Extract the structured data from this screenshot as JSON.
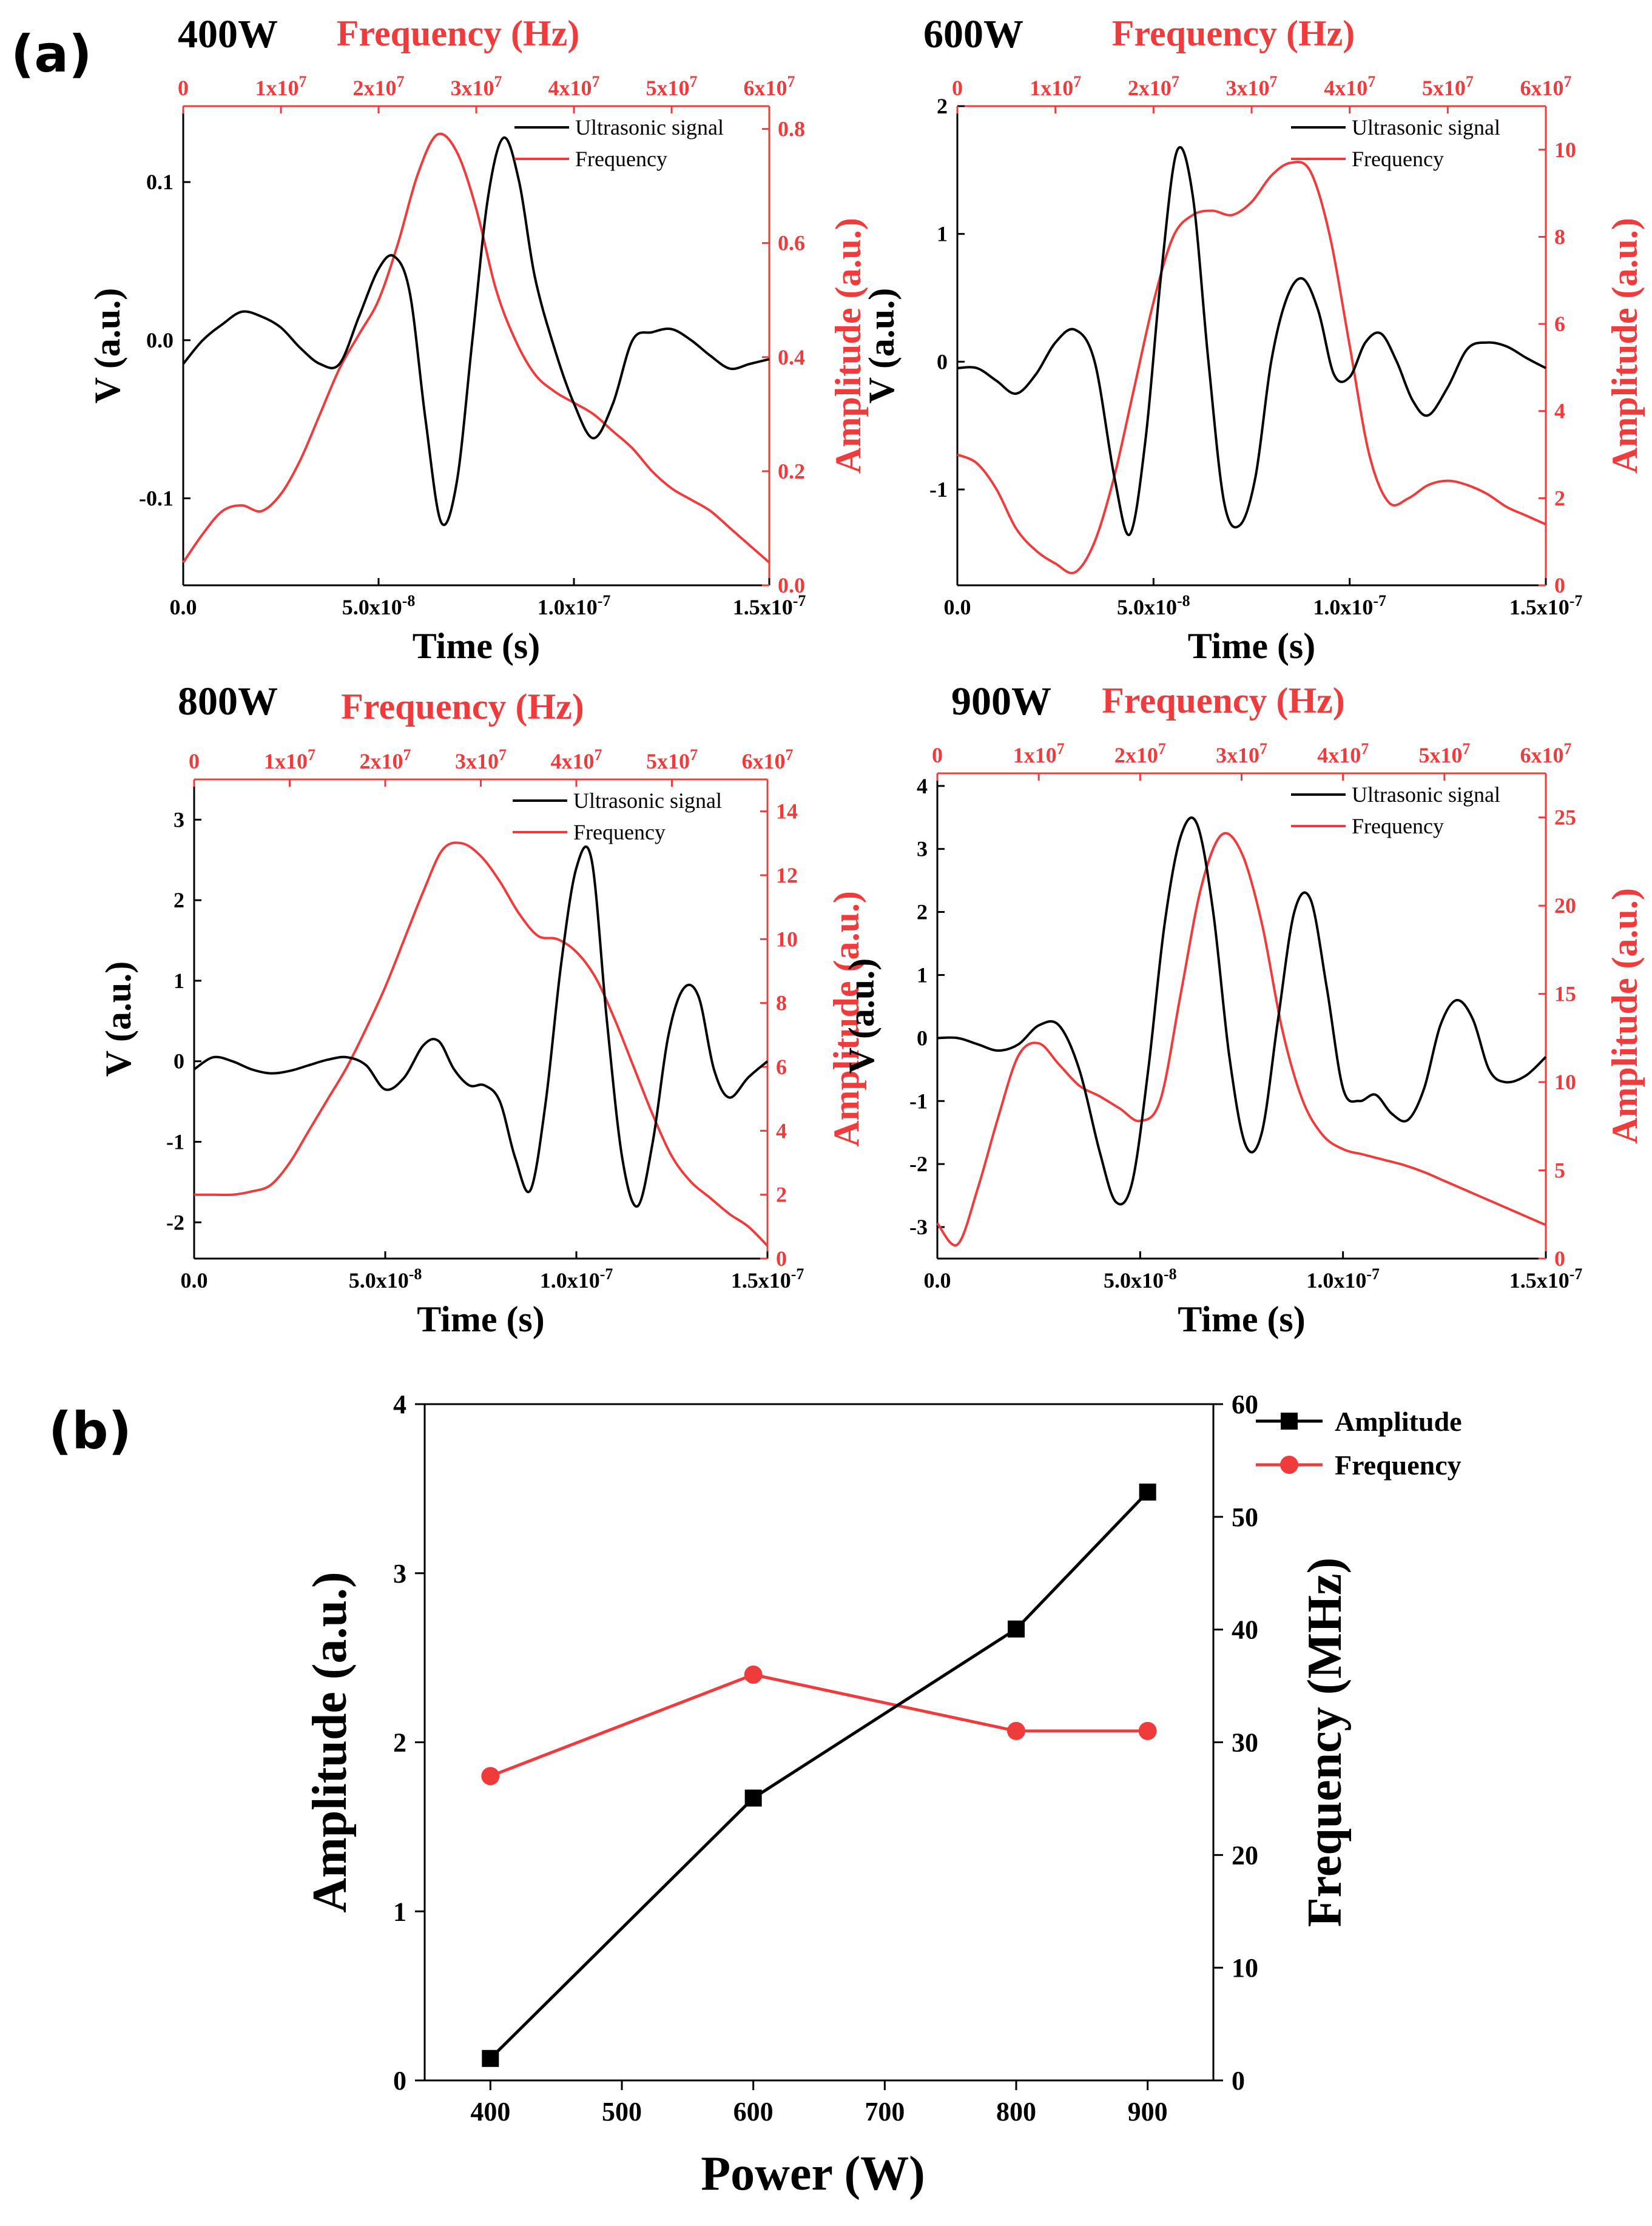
{
  "panel_labels": {
    "a": "(a)",
    "b": "(b)"
  },
  "colors": {
    "signal": "#000000",
    "frequency": "#ef3b3b"
  },
  "chart_data": [
    {
      "type": "line",
      "panel": "a",
      "title": "400W",
      "xlabel": "Time (s)",
      "ylabel": "V (a.u.)",
      "top_xlabel": "Frequency (Hz)",
      "right_ylabel": "Amplitude (a.u.)",
      "xlim": [
        0,
        1.5e-07
      ],
      "ylim": [
        -0.155,
        0.148
      ],
      "top_xlim": [
        0,
        60000000.0
      ],
      "right_ylim": [
        0,
        0.84
      ],
      "x_ticks": [
        "0.0",
        "5.0x10-8",
        "1.0x10-7",
        "1.5x10-7"
      ],
      "y_ticks": [
        "0.1",
        "0.0",
        "-0.1"
      ],
      "top_ticks": [
        "0",
        "1x107",
        "2x107",
        "3x107",
        "4x107",
        "5x107",
        "6x107"
      ],
      "right_ticks": [
        "0.8",
        "0.6",
        "0.4",
        "0.2",
        "0.0"
      ],
      "legend": [
        "Ultrasonic signal",
        "Frequency"
      ],
      "series": [
        {
          "name": "Ultrasonic signal",
          "axis": "bottom-left",
          "x": [
            0,
            5e-09,
            1e-08,
            1.5e-08,
            2e-08,
            2.5e-08,
            3e-08,
            3.5e-08,
            4e-08,
            4.5e-08,
            5e-08,
            5.4e-08,
            5.8e-08,
            6.2e-08,
            6.6e-08,
            7e-08,
            7.4e-08,
            7.8e-08,
            8.2e-08,
            8.6e-08,
            9e-08,
            9.5e-08,
            1e-07,
            1.05e-07,
            1.1e-07,
            1.15e-07,
            1.2e-07,
            1.25e-07,
            1.3e-07,
            1.35e-07,
            1.4e-07,
            1.45e-07,
            1.5e-07
          ],
          "y": [
            -0.015,
            0.0,
            0.01,
            0.018,
            0.015,
            0.008,
            -0.005,
            -0.015,
            -0.015,
            0.015,
            0.045,
            0.053,
            0.03,
            -0.05,
            -0.115,
            -0.09,
            0.0,
            0.09,
            0.128,
            0.1,
            0.04,
            -0.005,
            -0.04,
            -0.062,
            -0.04,
            0.0,
            0.005,
            0.007,
            0.0,
            -0.01,
            -0.018,
            -0.015,
            -0.012
          ]
        },
        {
          "name": "Frequency",
          "axis": "top-right",
          "x": [
            0,
            2000000.0,
            4000000.0,
            6000000.0,
            8000000.0,
            10000000.0,
            12000000.0,
            14000000.0,
            16000000.0,
            18000000.0,
            20000000.0,
            22000000.0,
            24000000.0,
            26000000.0,
            28000000.0,
            30000000.0,
            32000000.0,
            34000000.0,
            36000000.0,
            38000000.0,
            40000000.0,
            42000000.0,
            44000000.0,
            46000000.0,
            48000000.0,
            50000000.0,
            52000000.0,
            54000000.0,
            56000000.0,
            58000000.0,
            60000000.0
          ],
          "y": [
            0.04,
            0.09,
            0.13,
            0.14,
            0.13,
            0.16,
            0.22,
            0.3,
            0.38,
            0.44,
            0.5,
            0.6,
            0.72,
            0.79,
            0.76,
            0.66,
            0.52,
            0.43,
            0.37,
            0.34,
            0.32,
            0.3,
            0.27,
            0.24,
            0.2,
            0.17,
            0.15,
            0.13,
            0.1,
            0.07,
            0.04
          ]
        }
      ]
    },
    {
      "type": "line",
      "panel": "a",
      "title": "600W",
      "xlabel": "Time (s)",
      "ylabel": "V (a.u.)",
      "top_xlabel": "Frequency (Hz)",
      "right_ylabel": "Amplitude (a.u.)",
      "xlim": [
        0,
        1.5e-07
      ],
      "ylim": [
        -1.75,
        2.0
      ],
      "top_xlim": [
        0,
        60000000.0
      ],
      "right_ylim": [
        0,
        11.0
      ],
      "x_ticks": [
        "0.0",
        "5.0x10-8",
        "1.0x10-7",
        "1.5x10-7"
      ],
      "y_ticks": [
        "2",
        "1",
        "0",
        "-1"
      ],
      "top_ticks": [
        "0",
        "1x107",
        "2x107",
        "3x107",
        "4x107",
        "5x107",
        "6x107"
      ],
      "right_ticks": [
        "10",
        "8",
        "6",
        "4",
        "2",
        "0"
      ],
      "legend": [
        "Ultrasonic signal",
        "Frequency"
      ],
      "series": [
        {
          "name": "Ultrasonic signal",
          "axis": "bottom-left",
          "x": [
            0,
            5e-09,
            1e-08,
            1.5e-08,
            2e-08,
            2.5e-08,
            3e-08,
            3.5e-08,
            4e-08,
            4.4e-08,
            4.8e-08,
            5.2e-08,
            5.6e-08,
            6e-08,
            6.4e-08,
            6.8e-08,
            7.2e-08,
            7.6e-08,
            8e-08,
            8.4e-08,
            8.8e-08,
            9.2e-08,
            9.6e-08,
            1e-07,
            1.04e-07,
            1.08e-07,
            1.12e-07,
            1.16e-07,
            1.2e-07,
            1.25e-07,
            1.3e-07,
            1.35e-07,
            1.4e-07,
            1.45e-07,
            1.5e-07
          ],
          "y": [
            -0.05,
            -0.05,
            -0.15,
            -0.25,
            -0.1,
            0.15,
            0.25,
            0.0,
            -0.9,
            -1.35,
            -0.6,
            0.7,
            1.65,
            1.3,
            0.0,
            -1.1,
            -1.28,
            -0.9,
            0.0,
            0.5,
            0.65,
            0.4,
            -0.1,
            -0.12,
            0.15,
            0.22,
            0.0,
            -0.3,
            -0.42,
            -0.2,
            0.1,
            0.15,
            0.12,
            0.03,
            -0.05
          ]
        },
        {
          "name": "Frequency",
          "axis": "top-right",
          "x": [
            0,
            2000000.0,
            4000000.0,
            6000000.0,
            8000000.0,
            10000000.0,
            12000000.0,
            14000000.0,
            16000000.0,
            18000000.0,
            20000000.0,
            22000000.0,
            24000000.0,
            26000000.0,
            28000000.0,
            30000000.0,
            32000000.0,
            34000000.0,
            36000000.0,
            38000000.0,
            40000000.0,
            42000000.0,
            44000000.0,
            46000000.0,
            48000000.0,
            50000000.0,
            52000000.0,
            54000000.0,
            56000000.0,
            58000000.0,
            60000000.0
          ],
          "y": [
            3.0,
            2.8,
            2.2,
            1.3,
            0.8,
            0.5,
            0.3,
            1.0,
            2.5,
            4.5,
            6.5,
            8.0,
            8.5,
            8.6,
            8.5,
            8.8,
            9.4,
            9.7,
            9.5,
            8.0,
            5.5,
            3.0,
            1.9,
            2.0,
            2.3,
            2.4,
            2.3,
            2.1,
            1.8,
            1.6,
            1.4
          ]
        }
      ]
    },
    {
      "type": "line",
      "panel": "a",
      "title": "800W",
      "xlabel": "Time (s)",
      "ylabel": "V (a.u.)",
      "top_xlabel": "Frequency (Hz)",
      "right_ylabel": "Amplitude (a.u.)",
      "xlim": [
        0,
        1.5e-07
      ],
      "ylim": [
        -2.45,
        3.5
      ],
      "top_xlim": [
        0,
        60000000.0
      ],
      "right_ylim": [
        0,
        15.0
      ],
      "x_ticks": [
        "0.0",
        "5.0x10-8",
        "1.0x10-7",
        "1.5x10-7"
      ],
      "y_ticks": [
        "3",
        "2",
        "1",
        "0",
        "-1",
        "-2"
      ],
      "top_ticks": [
        "0",
        "1x107",
        "2x107",
        "3x107",
        "4x107",
        "5x107",
        "6x107"
      ],
      "right_ticks": [
        "14",
        "12",
        "10",
        "8",
        "6",
        "4",
        "2",
        "0"
      ],
      "legend": [
        "Ultrasonic signal",
        "Frequency"
      ],
      "series": [
        {
          "name": "Ultrasonic signal",
          "axis": "bottom-left",
          "x": [
            0,
            5e-09,
            1e-08,
            1.5e-08,
            2e-08,
            2.5e-08,
            3e-08,
            3.5e-08,
            4e-08,
            4.5e-08,
            5e-08,
            5.5e-08,
            6e-08,
            6.4e-08,
            6.8e-08,
            7.2e-08,
            7.6e-08,
            8e-08,
            8.4e-08,
            8.8e-08,
            9.2e-08,
            9.6e-08,
            1e-07,
            1.04e-07,
            1.08e-07,
            1.12e-07,
            1.16e-07,
            1.2e-07,
            1.24e-07,
            1.28e-07,
            1.32e-07,
            1.36e-07,
            1.4e-07,
            1.45e-07,
            1.5e-07
          ],
          "y": [
            -0.1,
            0.05,
            0.0,
            -0.1,
            -0.15,
            -0.12,
            -0.05,
            0.02,
            0.05,
            -0.05,
            -0.35,
            -0.2,
            0.2,
            0.25,
            -0.1,
            -0.3,
            -0.3,
            -0.5,
            -1.2,
            -1.6,
            -0.5,
            1.2,
            2.4,
            2.5,
            0.5,
            -1.2,
            -1.8,
            -1.0,
            0.3,
            0.9,
            0.8,
            -0.1,
            -0.45,
            -0.2,
            0.0
          ]
        },
        {
          "name": "Frequency",
          "axis": "top-right",
          "x": [
            0,
            2000000.0,
            4000000.0,
            6000000.0,
            8000000.0,
            10000000.0,
            12000000.0,
            14000000.0,
            16000000.0,
            18000000.0,
            20000000.0,
            22000000.0,
            24000000.0,
            26000000.0,
            28000000.0,
            30000000.0,
            32000000.0,
            34000000.0,
            36000000.0,
            38000000.0,
            40000000.0,
            42000000.0,
            44000000.0,
            46000000.0,
            48000000.0,
            50000000.0,
            52000000.0,
            54000000.0,
            56000000.0,
            58000000.0,
            60000000.0
          ],
          "y": [
            2.0,
            2.0,
            2.0,
            2.1,
            2.3,
            3.0,
            4.0,
            5.0,
            6.0,
            7.2,
            8.5,
            10.0,
            11.5,
            12.8,
            13.0,
            12.6,
            11.8,
            10.8,
            10.1,
            10.0,
            9.6,
            8.8,
            7.5,
            6.0,
            4.5,
            3.2,
            2.4,
            1.9,
            1.4,
            1.0,
            0.4
          ]
        }
      ]
    },
    {
      "type": "line",
      "panel": "a",
      "title": "900W",
      "xlabel": "Time (s)",
      "ylabel": "V (a.u.)",
      "top_xlabel": "Frequency (Hz)",
      "right_ylabel": "Amplitude (a.u.)",
      "xlim": [
        0,
        1.5e-07
      ],
      "ylim": [
        -3.5,
        4.2
      ],
      "top_xlim": [
        0,
        60000000.0
      ],
      "right_ylim": [
        0,
        27.5
      ],
      "x_ticks": [
        "0.0",
        "5.0x10-8",
        "1.0x10-7",
        "1.5x10-7"
      ],
      "y_ticks": [
        "4",
        "3",
        "2",
        "1",
        "0",
        "-1",
        "-2",
        "-3"
      ],
      "top_ticks": [
        "0",
        "1x107",
        "2x107",
        "3x107",
        "4x107",
        "5x107",
        "6x107"
      ],
      "right_ticks": [
        "25",
        "20",
        "15",
        "10",
        "5",
        "0"
      ],
      "legend": [
        "Ultrasonic signal",
        "Frequency"
      ],
      "series": [
        {
          "name": "Ultrasonic signal",
          "axis": "bottom-left",
          "x": [
            0,
            5e-09,
            1e-08,
            1.5e-08,
            2e-08,
            2.5e-08,
            3e-08,
            3.5e-08,
            4e-08,
            4.4e-08,
            4.8e-08,
            5.2e-08,
            5.6e-08,
            6e-08,
            6.4e-08,
            6.8e-08,
            7.2e-08,
            7.6e-08,
            8e-08,
            8.4e-08,
            8.8e-08,
            9.2e-08,
            9.6e-08,
            1e-07,
            1.04e-07,
            1.08e-07,
            1.12e-07,
            1.16e-07,
            1.2e-07,
            1.24e-07,
            1.28e-07,
            1.32e-07,
            1.36e-07,
            1.4e-07,
            1.45e-07,
            1.5e-07
          ],
          "y": [
            0.0,
            0.0,
            -0.1,
            -0.2,
            -0.1,
            0.2,
            0.2,
            -0.5,
            -1.8,
            -2.6,
            -2.3,
            -0.5,
            1.8,
            3.2,
            3.4,
            2.0,
            -0.3,
            -1.7,
            -1.5,
            0.3,
            2.0,
            2.2,
            0.8,
            -0.8,
            -1.0,
            -0.9,
            -1.2,
            -1.3,
            -0.8,
            0.2,
            0.6,
            0.3,
            -0.5,
            -0.7,
            -0.6,
            -0.3
          ]
        },
        {
          "name": "Frequency",
          "axis": "top-right",
          "x": [
            0,
            2000000.0,
            4000000.0,
            6000000.0,
            8000000.0,
            10000000.0,
            12000000.0,
            14000000.0,
            16000000.0,
            18000000.0,
            20000000.0,
            22000000.0,
            24000000.0,
            26000000.0,
            28000000.0,
            30000000.0,
            32000000.0,
            34000000.0,
            36000000.0,
            38000000.0,
            40000000.0,
            42000000.0,
            44000000.0,
            46000000.0,
            48000000.0,
            50000000.0,
            52000000.0,
            54000000.0,
            56000000.0,
            58000000.0,
            60000000.0
          ],
          "y": [
            2.0,
            0.8,
            4.0,
            8.0,
            11.5,
            12.2,
            11.0,
            9.8,
            9.2,
            8.5,
            7.8,
            9.0,
            15.0,
            21.0,
            24.0,
            23.0,
            19.0,
            13.0,
            9.0,
            7.0,
            6.2,
            5.9,
            5.6,
            5.3,
            4.9,
            4.4,
            3.9,
            3.4,
            2.9,
            2.4,
            1.9
          ]
        }
      ]
    },
    {
      "type": "line",
      "panel": "b",
      "title": "",
      "xlabel": "Power (W)",
      "ylabel": "Amplitude (a.u.)",
      "right_ylabel": "Frequency (MHz)",
      "xlim": [
        350,
        950
      ],
      "ylim": [
        0,
        4
      ],
      "right_ylim": [
        0,
        60
      ],
      "x_ticks": [
        "400",
        "500",
        "600",
        "700",
        "800",
        "900"
      ],
      "y_ticks": [
        "4",
        "3",
        "2",
        "1",
        "0"
      ],
      "right_ticks": [
        "60",
        "50",
        "40",
        "30",
        "20",
        "10",
        "0"
      ],
      "legend": [
        "Amplitude",
        "Frequency"
      ],
      "series": [
        {
          "name": "Amplitude",
          "axis": "left",
          "marker": "square",
          "x": [
            400,
            600,
            800,
            900
          ],
          "y": [
            0.13,
            1.67,
            2.67,
            3.48
          ]
        },
        {
          "name": "Frequency",
          "axis": "right",
          "marker": "circle",
          "x": [
            400,
            600,
            800,
            900
          ],
          "y": [
            27,
            36,
            31,
            31
          ]
        }
      ]
    }
  ]
}
